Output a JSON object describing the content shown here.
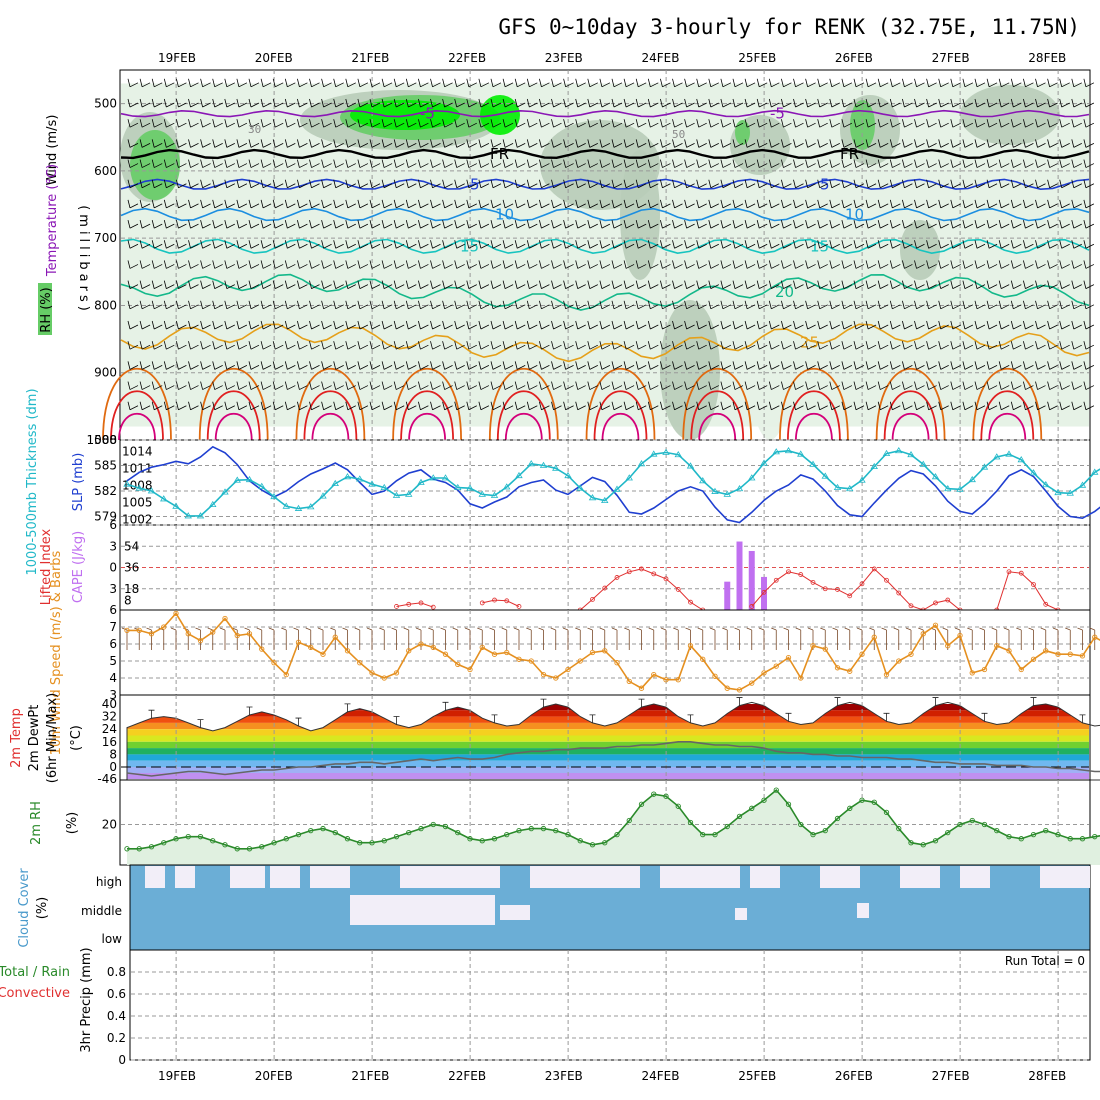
{
  "title": "GFS 0~10day 3-hourly for RENK (32.75E, 11.75N)",
  "dates": [
    "19FEB",
    "20FEB",
    "21FEB",
    "22FEB",
    "23FEB",
    "24FEB",
    "25FEB",
    "26FEB",
    "27FEB",
    "28FEB"
  ],
  "colors": {
    "rh_light": "#e6f2e6",
    "rh_mid": "#b8ccb8",
    "rh_dark": "#8fb08f",
    "rh_green": "#66cc66",
    "rh_bright": "#00ee00",
    "t_minus5": "#8a16b5",
    "t_0": "#000000",
    "t_5": "#1f3fd0",
    "t_10": "#1c8ee0",
    "t_15": "#17c4bf",
    "t_20": "#14b88a",
    "t_25": "#e5a01a",
    "t_30": "#e06a10",
    "t_35": "#e02020",
    "t_40": "#d4007a",
    "thickness": "#1f3fd0",
    "slp": "#20b8c8",
    "lifted": "#e03030",
    "cape": "#c070f0",
    "wind10": "#e59020",
    "rh2m": "#2a8a2a",
    "cloud": "#6baed6",
    "cloud_gap": "#f2eef8"
  },
  "chart_data": [
    {
      "type": "contour",
      "panel": "upper_air",
      "ylabels": [
        "Wind (m/s)",
        "Temperature (°C)",
        "RH (%)",
        "(millibars)"
      ],
      "yticks": [
        500,
        600,
        700,
        800,
        900,
        1000
      ],
      "ylim": [
        450,
        1000
      ],
      "rh_contours": [
        30,
        50
      ],
      "temperature_contours": [
        {
          "label": "-5",
          "level_mb": 515
        },
        {
          "label": "FR",
          "level_mb": 575
        },
        {
          "label": "5",
          "level_mb": 620
        },
        {
          "label": "10",
          "level_mb": 665
        },
        {
          "label": "15",
          "level_mb": 712
        },
        {
          "label": "20",
          "level_mb": 780
        },
        {
          "label": "25",
          "level_mb": 855
        }
      ],
      "contour_labels": [
        "-5",
        "FR",
        "5",
        "10",
        "15",
        "20",
        "25",
        "30",
        "50"
      ]
    },
    {
      "type": "line",
      "panel": "thickness_slp",
      "ylabels": [
        "1000-500mb Thickness (dm)",
        "SLP (mb)"
      ],
      "yticks_left": [
        579,
        582,
        585,
        588
      ],
      "yticks_right": [
        1002,
        1005,
        1008,
        1011,
        1014
      ],
      "series": [
        {
          "name": "1000-500mb Thickness (dm)",
          "axis": "left",
          "values": [
            583.2,
            584.2,
            584.8,
            585.1,
            585.5,
            585.2,
            586.0,
            587.2,
            586.5,
            585.1,
            583.2,
            582.1,
            581.3,
            582.0,
            583.1,
            584.0,
            584.6,
            585.3,
            584.5,
            583.0,
            581.6,
            582.0,
            583.2,
            584.1,
            584.5,
            583.4,
            583.0,
            582.1,
            580.5,
            580.0,
            580.7,
            581.3,
            582.5,
            583.0,
            583.3,
            582.1,
            581.6,
            582.6,
            583.6,
            583.1,
            581.5,
            579.5,
            579.3,
            580.0,
            581.0,
            582.0,
            582.5,
            582.0,
            580.1,
            578.6,
            578.3,
            579.5,
            580.9,
            582.0,
            582.7,
            583.9,
            583.4,
            582.0,
            580.3,
            579.2,
            579.0,
            580.6,
            582.1,
            583.5,
            584.4,
            584.0,
            582.6,
            580.8,
            579.6,
            579.3,
            580.5,
            582.0,
            583.8,
            584.5,
            583.7,
            582.0,
            580.2,
            579.0,
            578.8,
            579.6,
            580.7,
            581.4,
            582.4,
            583.0,
            582.3,
            580.9,
            580.1,
            580.6,
            581.7,
            582.7,
            583.0,
            581.6
          ]
        },
        {
          "name": "SLP (mb)",
          "axis": "right",
          "values": [
            1008.2,
            1007.5,
            1007.0,
            1005.6,
            1004.3,
            1002.6,
            1002.6,
            1004.6,
            1006.8,
            1008.9,
            1009.0,
            1007.8,
            1006.0,
            1004.3,
            1003.9,
            1004.2,
            1006.1,
            1008.3,
            1009.5,
            1009.1,
            1008.2,
            1007.6,
            1006.2,
            1006.4,
            1008.5,
            1009.3,
            1009.3,
            1007.6,
            1007.5,
            1006.4,
            1006.2,
            1007.7,
            1009.7,
            1011.8,
            1011.5,
            1011.0,
            1009.7,
            1007.5,
            1005.8,
            1005.3,
            1007.3,
            1009.3,
            1011.8,
            1013.5,
            1013.8,
            1013.4,
            1011.4,
            1008.8,
            1006.9,
            1006.4,
            1007.4,
            1009.3,
            1011.9,
            1013.9,
            1014.1,
            1013.5,
            1011.7,
            1009.6,
            1007.6,
            1007.4,
            1008.9,
            1011.3,
            1013.6,
            1014.1,
            1013.4,
            1011.7,
            1009.5,
            1007.4,
            1007.3,
            1009.0,
            1011.2,
            1013.0,
            1013.5,
            1012.5,
            1010.2,
            1008.1,
            1006.7,
            1006.6,
            1008.0,
            1010.3,
            1011.6,
            1011.6,
            1010.5,
            1008.8,
            1006.9,
            1007.0,
            1008.3,
            1009.8,
            1010.3,
            1009.9,
            1008.0,
            1006.6
          ]
        }
      ]
    },
    {
      "type": "bar_line",
      "panel": "lifted_cape",
      "ylabels": [
        "Lifted Index",
        "CAPE (J/kg)"
      ],
      "yticks_left": [
        -6,
        -3,
        0,
        3,
        6
      ],
      "yticks_right": [
        8,
        18,
        36,
        54
      ],
      "lifted_index_segments": [
        {
          "start": 22,
          "values": [
            5.5,
            5.2,
            5.0,
            5.6
          ]
        },
        {
          "start": 29,
          "values": [
            5.0,
            4.6,
            4.7,
            5.5
          ]
        },
        {
          "start": 37,
          "values": [
            6.0,
            4.5,
            2.9,
            1.4,
            0.6,
            0.2,
            0.9,
            1.6,
            3.1,
            4.9,
            6.0
          ]
        },
        {
          "start": 51,
          "values": [
            5.5,
            3.5,
            1.8,
            0.6,
            1.0,
            2.1,
            3.0,
            3.1,
            4.0,
            2.3,
            0.2,
            1.8,
            3.6,
            5.4,
            6.0,
            5.0,
            4.6,
            6.0
          ]
        },
        {
          "start": 71,
          "values": [
            6.0,
            0.6,
            0.8,
            2.4,
            5.2,
            6.0
          ]
        },
        {
          "start": 83,
          "values": [
            5.6,
            3.7,
            3.6,
            6.0
          ]
        }
      ],
      "cape_bars": [
        {
          "step": 49,
          "value": 24
        },
        {
          "step": 50,
          "value": 58
        },
        {
          "step": 51,
          "value": 50
        },
        {
          "step": 52,
          "value": 28
        }
      ]
    },
    {
      "type": "line",
      "panel": "wind10m",
      "ylabels": [
        "10m Wind Speed (m/s) & Barbs"
      ],
      "yticks": [
        3,
        4,
        5,
        6,
        7
      ],
      "ylim": [
        3,
        8
      ],
      "series": [
        {
          "name": "10m Wind Speed",
          "values": [
            6.8,
            6.8,
            6.6,
            7.0,
            7.8,
            6.6,
            6.2,
            6.7,
            7.5,
            6.5,
            6.6,
            5.7,
            4.9,
            4.2,
            6.1,
            5.8,
            5.4,
            6.4,
            5.6,
            4.9,
            4.3,
            4.0,
            4.3,
            5.6,
            6.0,
            5.8,
            5.4,
            4.8,
            4.5,
            5.8,
            5.4,
            5.5,
            5.1,
            5.0,
            4.2,
            4.0,
            4.5,
            5.0,
            5.5,
            5.6,
            4.9,
            3.8,
            3.4,
            4.2,
            3.9,
            3.9,
            5.9,
            5.1,
            4.1,
            3.4,
            3.3,
            3.7,
            4.3,
            4.7,
            5.2,
            4.0,
            5.9,
            5.7,
            4.6,
            4.4,
            5.4,
            6.4,
            4.2,
            5.0,
            5.4,
            6.6,
            7.1,
            5.9,
            6.5,
            4.3,
            4.5,
            5.9,
            5.6,
            4.5,
            5.1,
            5.6,
            5.4,
            5.4,
            5.3,
            6.4,
            6.0,
            5.6,
            5.6,
            5.9,
            6.6,
            5.8,
            6.9,
            6.7,
            5.5,
            4.4,
            4.0,
            4.6,
            3.8,
            5.3
          ]
        }
      ]
    },
    {
      "type": "area",
      "panel": "temp2m",
      "ylabels": [
        "2m Temp",
        "2m DewPt",
        "(6hr Min/Max)",
        "(°C)"
      ],
      "yticks": [
        -46,
        0,
        8,
        16,
        24,
        32,
        40
      ],
      "series": [
        {
          "name": "2m Temp",
          "values": [
            25,
            28,
            31,
            32,
            31,
            28,
            25,
            23,
            25,
            29,
            33,
            35,
            33,
            30,
            26,
            23,
            25,
            30,
            35,
            37,
            35,
            31,
            27,
            25,
            27,
            32,
            36,
            38,
            36,
            31,
            28,
            26,
            27,
            33,
            38,
            40,
            38,
            32,
            28,
            26,
            28,
            33,
            38,
            40,
            38,
            32,
            28,
            26,
            28,
            34,
            39,
            41,
            39,
            34,
            29,
            27,
            28,
            34,
            39,
            41,
            39,
            34,
            29,
            27,
            28,
            34,
            39,
            41,
            39,
            34,
            29,
            27,
            28,
            34,
            39,
            40,
            38,
            33,
            28,
            26,
            27,
            33,
            38,
            39,
            37,
            32,
            28,
            26,
            28,
            28
          ]
        },
        {
          "name": "2m DewPt",
          "values": [
            -4,
            -5,
            -6,
            -5,
            -4,
            -3,
            -3,
            -4,
            -5,
            -4,
            -3,
            -2,
            -2,
            -1,
            0,
            0,
            1,
            2,
            2,
            3,
            3,
            2,
            3,
            4,
            5,
            4,
            5,
            6,
            5,
            5,
            6,
            8,
            9,
            10,
            10,
            11,
            11,
            12,
            12,
            12,
            13,
            13,
            14,
            14,
            15,
            16,
            16,
            15,
            14,
            14,
            13,
            13,
            12,
            10,
            9,
            9,
            8,
            8,
            7,
            7,
            6,
            6,
            6,
            5,
            5,
            4,
            3,
            3,
            2,
            2,
            2,
            1,
            1,
            1,
            0,
            0,
            -1,
            -1,
            -2,
            -3,
            -3,
            -4,
            -4,
            -5,
            -5,
            -5
          ]
        }
      ]
    },
    {
      "type": "area",
      "panel": "rh2m",
      "ylabels": [
        "2m RH",
        "(%)"
      ],
      "yticks": [
        20
      ],
      "series": [
        {
          "name": "2m RH",
          "values": [
            8,
            8,
            9,
            11,
            13,
            14,
            14,
            12,
            10,
            8,
            8,
            9,
            11,
            13,
            15,
            17,
            18,
            16,
            13,
            11,
            11,
            12,
            14,
            16,
            18,
            20,
            19,
            16,
            13,
            12,
            13,
            15,
            17,
            18,
            18,
            17,
            15,
            12,
            10,
            11,
            15,
            22,
            30,
            35,
            34,
            29,
            21,
            15,
            15,
            19,
            24,
            28,
            32,
            37,
            30,
            20,
            15,
            17,
            23,
            28,
            32,
            31,
            26,
            18,
            11,
            10,
            12,
            16,
            20,
            22,
            20,
            17,
            14,
            13,
            15,
            17,
            15,
            13,
            13,
            14,
            15,
            15,
            14,
            12,
            13,
            15,
            17,
            15,
            13,
            13,
            14,
            15,
            14,
            11
          ]
        }
      ]
    },
    {
      "type": "heatmap",
      "panel": "cloud_cover",
      "ylabels": [
        "Cloud Cover",
        "(%)"
      ],
      "rows": [
        "high",
        "middle",
        "low"
      ]
    },
    {
      "type": "bar",
      "panel": "precip",
      "ylabels": [
        "Total / Rain",
        "Convective",
        "3hr Precip (mm)"
      ],
      "yticks": [
        0,
        0.2,
        0.4,
        0.6,
        0.8
      ],
      "ylim": [
        0,
        1
      ],
      "values": [],
      "annotation": "Run Total = 0"
    }
  ]
}
